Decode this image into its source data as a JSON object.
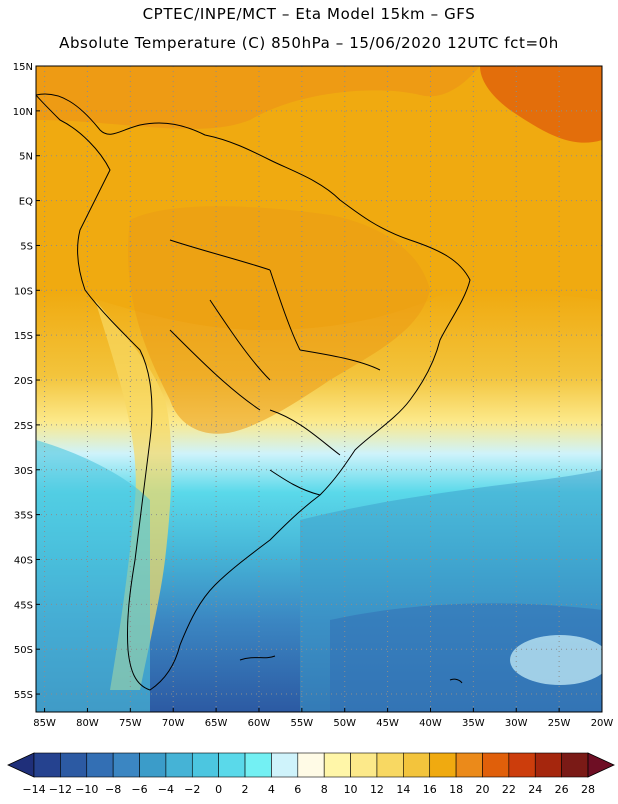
{
  "header": {
    "line1": "CPTEC/INPE/MCT –  Eta Model 15km – GFS",
    "line2": "Absolute Temperature (C) 850hPa – 15/06/2020 12UTC fct=0h"
  },
  "map": {
    "lat_labels": [
      "15N",
      "10N",
      "5N",
      "EQ",
      "5S",
      "10S",
      "15S",
      "20S",
      "25S",
      "30S",
      "35S",
      "40S",
      "45S",
      "50S",
      "55S"
    ],
    "lon_labels": [
      "85W",
      "80W",
      "75W",
      "70W",
      "65W",
      "60W",
      "55W",
      "50W",
      "45W",
      "40W",
      "35W",
      "30W",
      "25W",
      "20W"
    ],
    "lat_range": [
      15,
      -57
    ],
    "lon_range": [
      -86,
      -20
    ]
  },
  "colorbar": {
    "labels": [
      "-14",
      "-12",
      "-10",
      "-8",
      "-6",
      "-4",
      "-2",
      "0",
      "2",
      "4",
      "6",
      "8",
      "10",
      "12",
      "14",
      "16",
      "18",
      "20",
      "22",
      "24",
      "26",
      "28"
    ],
    "colors": [
      "#25428f",
      "#2c5aa3",
      "#336fb4",
      "#3b86c2",
      "#3b9cc9",
      "#45b3d6",
      "#4cc6e0",
      "#5ad9ea",
      "#73f0f3",
      "#cff3fb",
      "#fffbe6",
      "#fff6a8",
      "#fce98a",
      "#f8d862",
      "#f3c43c",
      "#f0aa10",
      "#eb8a1a",
      "#e05f0a",
      "#cc3d0c",
      "#a5260d",
      "#7a1a16"
    ],
    "low_arrow_color": "#1f2f7a",
    "high_arrow_color": "#6e0e24"
  }
}
